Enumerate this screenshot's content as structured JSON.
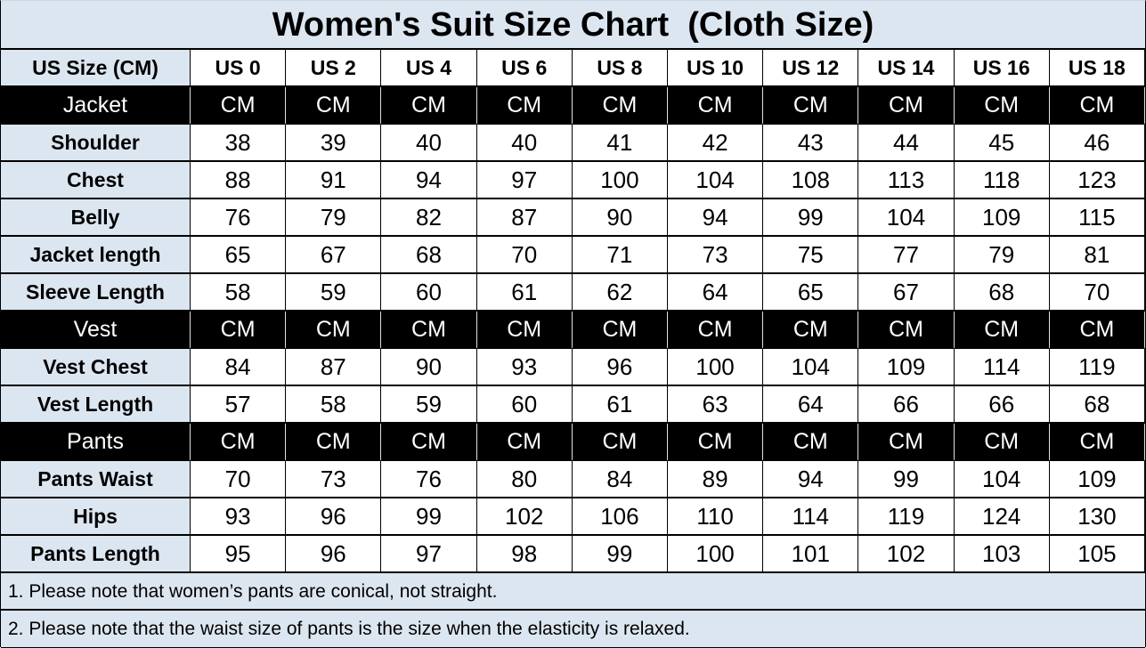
{
  "chart_data": {
    "type": "table",
    "title": "Women's Suit Size Chart  (Cloth Size)",
    "corner_header": "US Size (CM)",
    "columns": [
      "US 0",
      "US 2",
      "US 4",
      "US 6",
      "US 8",
      "US 10",
      "US 12",
      "US 14",
      "US 16",
      "US 18"
    ],
    "sections": [
      {
        "name": "Jacket",
        "units": [
          "CM",
          "CM",
          "CM",
          "CM",
          "CM",
          "CM",
          "CM",
          "CM",
          "CM",
          "CM"
        ],
        "rows": [
          {
            "label": "Shoulder",
            "values": [
              38,
              39,
              40,
              40,
              41,
              42,
              43,
              44,
              45,
              46
            ]
          },
          {
            "label": "Chest",
            "values": [
              88,
              91,
              94,
              97,
              100,
              104,
              108,
              113,
              118,
              123
            ]
          },
          {
            "label": "Belly",
            "values": [
              76,
              79,
              82,
              87,
              90,
              94,
              99,
              104,
              109,
              115
            ]
          },
          {
            "label": "Jacket length",
            "values": [
              65,
              67,
              68,
              70,
              71,
              73,
              75,
              77,
              79,
              81
            ]
          },
          {
            "label": "Sleeve Length",
            "values": [
              58,
              59,
              60,
              61,
              62,
              64,
              65,
              67,
              68,
              70
            ]
          }
        ]
      },
      {
        "name": "Vest",
        "units": [
          "CM",
          "CM",
          "CM",
          "CM",
          "CM",
          "CM",
          "CM",
          "CM",
          "CM",
          "CM"
        ],
        "rows": [
          {
            "label": "Vest Chest",
            "values": [
              84,
              87,
              90,
              93,
              96,
              100,
              104,
              109,
              114,
              119
            ]
          },
          {
            "label": "Vest Length",
            "values": [
              57,
              58,
              59,
              60,
              61,
              63,
              64,
              66,
              66,
              68
            ]
          }
        ]
      },
      {
        "name": "Pants",
        "units": [
          "CM",
          "CM",
          "CM",
          "CM",
          "CM",
          "CM",
          "CM",
          "CM",
          "CM",
          "CM"
        ],
        "rows": [
          {
            "label": "Pants Waist",
            "values": [
              70,
              73,
              76,
              80,
              84,
              89,
              94,
              99,
              104,
              109
            ]
          },
          {
            "label": "Hips",
            "values": [
              93,
              96,
              99,
              102,
              106,
              110,
              114,
              119,
              124,
              130
            ]
          },
          {
            "label": "Pants Length",
            "values": [
              95,
              96,
              97,
              98,
              99,
              100,
              101,
              102,
              103,
              105
            ]
          }
        ]
      }
    ],
    "notes": [
      "1. Please note that women’s pants are conical, not straight.",
      "2. Please note that the waist size of pants is the size when the elasticity is relaxed."
    ]
  },
  "colors": {
    "header_bg": "#dce6f1",
    "section_row_bg": "#000000",
    "section_row_text": "#ffffff",
    "grid_border": "#000000",
    "cell_bg": "#ffffff",
    "text": "#000000"
  }
}
